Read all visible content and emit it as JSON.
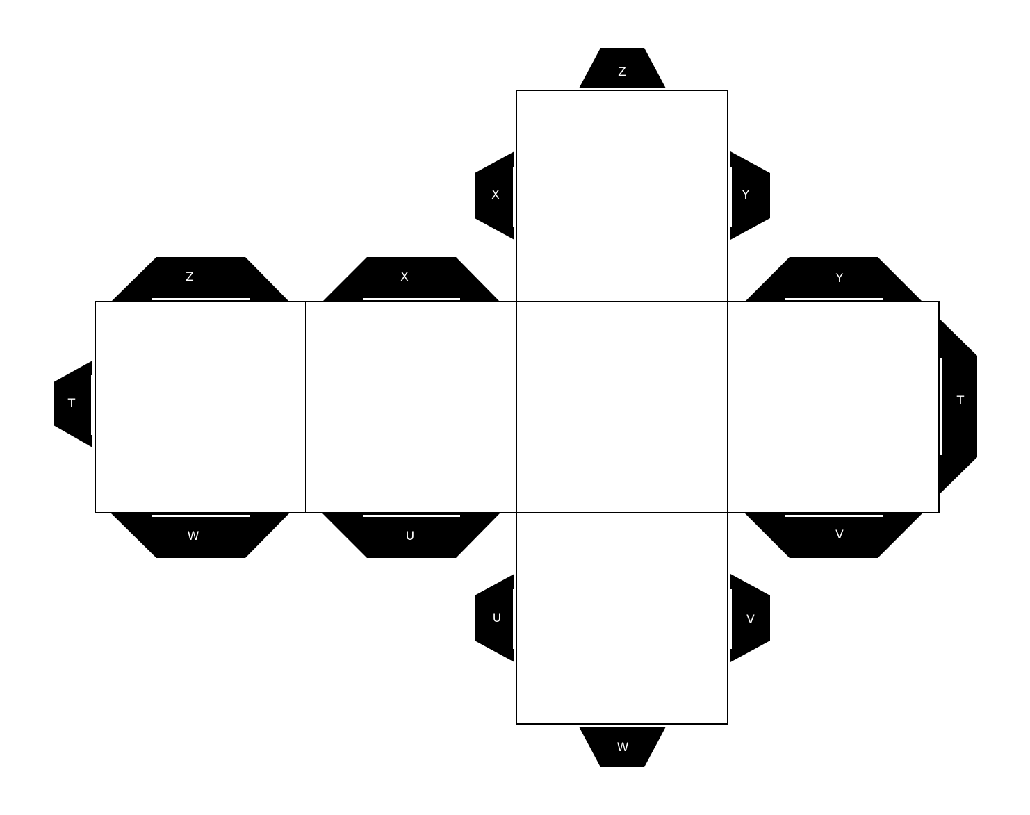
{
  "diagram": {
    "type": "cube-net",
    "colors": {
      "tab": "#000000",
      "face": "#ffffff",
      "outline": "#000000",
      "label": "#ffffff"
    },
    "faces": [
      "top",
      "far-left",
      "left",
      "center",
      "right",
      "bottom"
    ],
    "tabs": {
      "top_top": "Z",
      "top_left": "X",
      "top_right": "Y",
      "farleft_top": "Z",
      "farleft_left": "T",
      "farleft_bottom": "W",
      "left_top": "X",
      "left_bottom": "U",
      "right_top": "Y",
      "right_right": "T",
      "right_bottom": "V",
      "bottom_left": "U",
      "bottom_right": "V",
      "bottom_bottom": "W"
    }
  }
}
